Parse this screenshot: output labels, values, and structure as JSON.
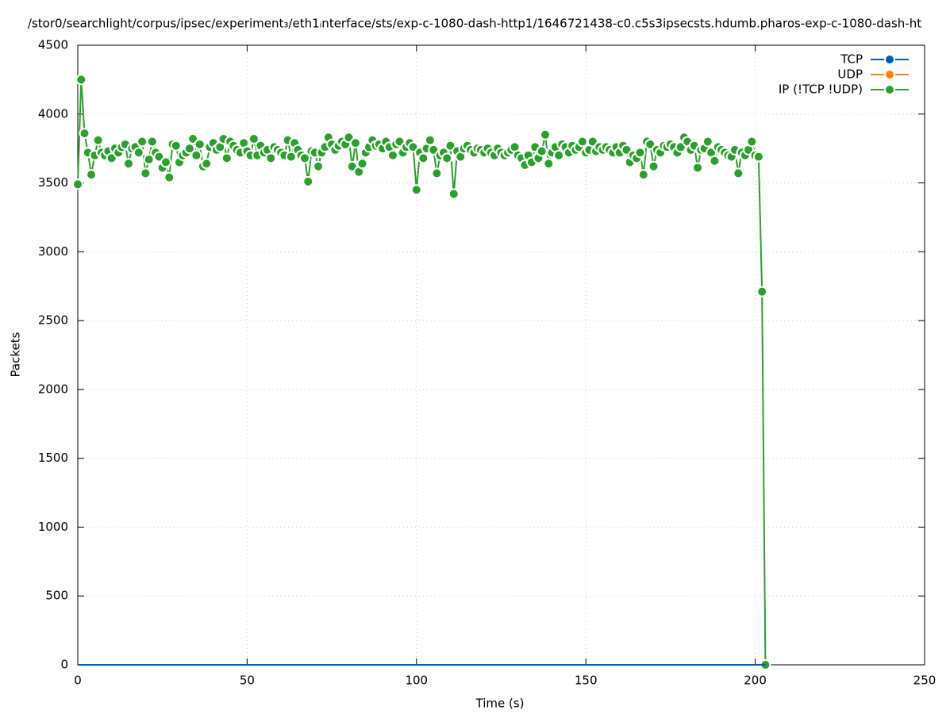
{
  "chart_data": {
    "type": "line",
    "title": "/stor0/searchlight/corpus/ipsec/experiment₃/eth1ᵢnterface/sts/exp-c-1080-dash-http1/1646721438-c0.c5s3ipsecsts.hdumb.pharos-exp-c-1080-dash-ht",
    "x_label": "Time (s)",
    "y_label": "Packets",
    "xlim": [
      0,
      250
    ],
    "xticks": [
      0,
      50,
      100,
      150,
      200,
      250
    ],
    "ylim": [
      0,
      4500
    ],
    "yticks": [
      0,
      500,
      1000,
      1500,
      2000,
      2500,
      3000,
      3500,
      4000,
      4500
    ],
    "grid": true,
    "legend": "top right",
    "x": [
      0,
      1,
      2,
      3,
      4,
      5,
      6,
      7,
      8,
      9,
      10,
      11,
      12,
      13,
      14,
      15,
      16,
      17,
      18,
      19,
      20,
      21,
      22,
      23,
      24,
      25,
      26,
      27,
      28,
      29,
      30,
      31,
      32,
      33,
      34,
      35,
      36,
      37,
      38,
      39,
      40,
      41,
      42,
      43,
      44,
      45,
      46,
      47,
      48,
      49,
      50,
      51,
      52,
      53,
      54,
      55,
      56,
      57,
      58,
      59,
      60,
      61,
      62,
      63,
      64,
      65,
      66,
      67,
      68,
      69,
      70,
      71,
      72,
      73,
      74,
      75,
      76,
      77,
      78,
      79,
      80,
      81,
      82,
      83,
      84,
      85,
      86,
      87,
      88,
      89,
      90,
      91,
      92,
      93,
      94,
      95,
      96,
      97,
      98,
      99,
      100,
      101,
      102,
      103,
      104,
      105,
      106,
      107,
      108,
      109,
      110,
      111,
      112,
      113,
      114,
      115,
      116,
      117,
      118,
      119,
      120,
      121,
      122,
      123,
      124,
      125,
      126,
      127,
      128,
      129,
      130,
      131,
      132,
      133,
      134,
      135,
      136,
      137,
      138,
      139,
      140,
      141,
      142,
      143,
      144,
      145,
      146,
      147,
      148,
      149,
      150,
      151,
      152,
      153,
      154,
      155,
      156,
      157,
      158,
      159,
      160,
      161,
      162,
      163,
      164,
      165,
      166,
      167,
      168,
      169,
      170,
      171,
      172,
      173,
      174,
      175,
      176,
      177,
      178,
      179,
      180,
      181,
      182,
      183,
      184,
      185,
      186,
      187,
      188,
      189,
      190,
      191,
      192,
      193,
      194,
      195,
      196,
      197,
      198,
      199,
      200,
      201,
      202,
      203
    ],
    "series": [
      {
        "name": "TCP",
        "color": "#0060ad",
        "values": [
          0,
          0,
          0,
          0,
          0,
          0,
          0,
          0,
          0,
          0,
          0,
          0,
          0,
          0,
          0,
          0,
          0,
          0,
          0,
          0,
          0,
          0,
          0,
          0,
          0,
          0,
          0,
          0,
          0,
          0,
          0,
          0,
          0,
          0,
          0,
          0,
          0,
          0,
          0,
          0,
          0,
          0,
          0,
          0,
          0,
          0,
          0,
          0,
          0,
          0,
          0,
          0,
          0,
          0,
          0,
          0,
          0,
          0,
          0,
          0,
          0,
          0,
          0,
          0,
          0,
          0,
          0,
          0,
          0,
          0,
          0,
          0,
          0,
          0,
          0,
          0,
          0,
          0,
          0,
          0,
          0,
          0,
          0,
          0,
          0,
          0,
          0,
          0,
          0,
          0,
          0,
          0,
          0,
          0,
          0,
          0,
          0,
          0,
          0,
          0,
          0,
          0,
          0,
          0,
          0,
          0,
          0,
          0,
          0,
          0,
          0,
          0,
          0,
          0,
          0,
          0,
          0,
          0,
          0,
          0,
          0,
          0,
          0,
          0,
          0,
          0,
          0,
          0,
          0,
          0,
          0,
          0,
          0,
          0,
          0,
          0,
          0,
          0,
          0,
          0,
          0,
          0,
          0,
          0,
          0,
          0,
          0,
          0,
          0,
          0,
          0,
          0,
          0,
          0,
          0,
          0,
          0,
          0,
          0,
          0,
          0,
          0,
          0,
          0,
          0,
          0,
          0,
          0,
          0,
          0,
          0,
          0,
          0,
          0,
          0,
          0,
          0,
          0,
          0,
          0,
          0,
          0,
          0,
          0,
          0,
          0,
          0,
          0,
          0,
          0,
          0,
          0,
          0,
          0,
          0,
          0,
          0,
          0,
          0,
          0,
          0,
          0,
          0,
          0
        ]
      },
      {
        "name": "UDP",
        "color": "#ff7f0e",
        "values": [
          0,
          0,
          0,
          0,
          0,
          0,
          0,
          0,
          0,
          0,
          0,
          0,
          0,
          0,
          0,
          0,
          0,
          0,
          0,
          0,
          0,
          0,
          0,
          0,
          0,
          0,
          0,
          0,
          0,
          0,
          0,
          0,
          0,
          0,
          0,
          0,
          0,
          0,
          0,
          0,
          0,
          0,
          0,
          0,
          0,
          0,
          0,
          0,
          0,
          0,
          0,
          0,
          0,
          0,
          0,
          0,
          0,
          0,
          0,
          0,
          0,
          0,
          0,
          0,
          0,
          0,
          0,
          0,
          0,
          0,
          0,
          0,
          0,
          0,
          0,
          0,
          0,
          0,
          0,
          0,
          0,
          0,
          0,
          0,
          0,
          0,
          0,
          0,
          0,
          0,
          0,
          0,
          0,
          0,
          0,
          0,
          0,
          0,
          0,
          0,
          0,
          0,
          0,
          0,
          0,
          0,
          0,
          0,
          0,
          0,
          0,
          0,
          0,
          0,
          0,
          0,
          0,
          0,
          0,
          0,
          0,
          0,
          0,
          0,
          0,
          0,
          0,
          0,
          0,
          0,
          0,
          0,
          0,
          0,
          0,
          0,
          0,
          0,
          0,
          0,
          0,
          0,
          0,
          0,
          0,
          0,
          0,
          0,
          0,
          0,
          0,
          0,
          0,
          0,
          0,
          0,
          0,
          0,
          0,
          0,
          0,
          0,
          0,
          0,
          0,
          0,
          0,
          0,
          0,
          0,
          0,
          0,
          0,
          0,
          0,
          0,
          0,
          0,
          0,
          0,
          0,
          0,
          0,
          0,
          0,
          0,
          0,
          0,
          0,
          0,
          0,
          0,
          0,
          0,
          0,
          0,
          0,
          0,
          0,
          0,
          0,
          0,
          0,
          0
        ]
      },
      {
        "name": "IP (!TCP  !UDP)",
        "color": "#2ca02c",
        "values": [
          3490,
          4250,
          3860,
          3720,
          3560,
          3700,
          3810,
          3720,
          3700,
          3730,
          3680,
          3750,
          3720,
          3760,
          3780,
          3640,
          3750,
          3760,
          3720,
          3800,
          3570,
          3670,
          3800,
          3720,
          3690,
          3610,
          3650,
          3540,
          3780,
          3770,
          3650,
          3700,
          3720,
          3750,
          3820,
          3700,
          3780,
          3620,
          3640,
          3760,
          3790,
          3740,
          3760,
          3820,
          3680,
          3800,
          3770,
          3740,
          3720,
          3790,
          3730,
          3700,
          3820,
          3700,
          3770,
          3720,
          3740,
          3680,
          3760,
          3740,
          3720,
          3700,
          3810,
          3690,
          3790,
          3740,
          3700,
          3680,
          3510,
          3730,
          3720,
          3620,
          3720,
          3760,
          3830,
          3780,
          3740,
          3770,
          3800,
          3780,
          3830,
          3620,
          3790,
          3580,
          3640,
          3720,
          3760,
          3810,
          3770,
          3780,
          3750,
          3800,
          3760,
          3700,
          3780,
          3800,
          3720,
          3760,
          3790,
          3760,
          3450,
          3720,
          3680,
          3750,
          3810,
          3740,
          3570,
          3700,
          3720,
          3680,
          3770,
          3420,
          3730,
          3690,
          3750,
          3770,
          3740,
          3720,
          3750,
          3740,
          3720,
          3750,
          3720,
          3700,
          3750,
          3720,
          3700,
          3720,
          3740,
          3760,
          3700,
          3680,
          3630,
          3700,
          3650,
          3760,
          3680,
          3730,
          3850,
          3640,
          3720,
          3760,
          3700,
          3780,
          3760,
          3720,
          3770,
          3740,
          3760,
          3800,
          3720,
          3740,
          3800,
          3730,
          3760,
          3740,
          3760,
          3740,
          3720,
          3760,
          3720,
          3770,
          3740,
          3650,
          3700,
          3680,
          3720,
          3560,
          3800,
          3780,
          3620,
          3740,
          3720,
          3770,
          3760,
          3780,
          3760,
          3720,
          3760,
          3830,
          3800,
          3740,
          3770,
          3610,
          3740,
          3750,
          3800,
          3720,
          3660,
          3760,
          3740,
          3720,
          3700,
          3690,
          3740,
          3570,
          3720,
          3700,
          3740,
          3800,
          3700,
          3690,
          2710,
          0
        ]
      }
    ]
  }
}
